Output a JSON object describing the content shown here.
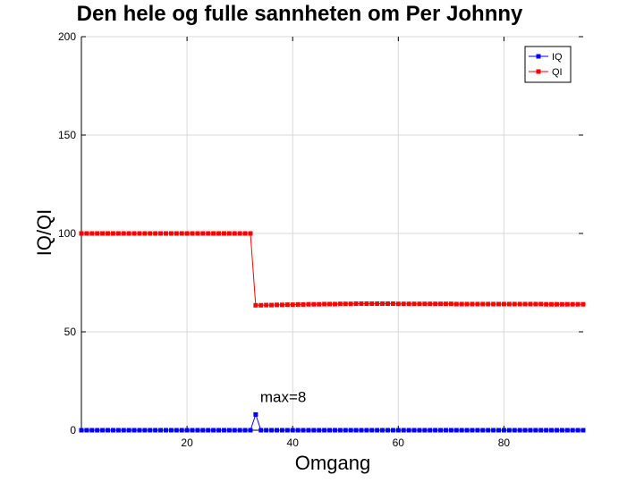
{
  "chart_data": {
    "type": "line",
    "title": "Den hele og fulle sannheten om Per Johnny",
    "xlabel": "Omgang",
    "ylabel": "IQ/QI",
    "xlim": [
      0,
      95
    ],
    "ylim": [
      0,
      200
    ],
    "xticks": [
      20,
      40,
      60,
      80
    ],
    "yticks": [
      0,
      50,
      100,
      150,
      200
    ],
    "grid": true,
    "legend_position": "top-right",
    "annotation": {
      "text": "max=8",
      "x": 33,
      "y": 8
    },
    "series": [
      {
        "name": "IQ",
        "color": "#0000ff",
        "marker": "square",
        "x": [
          0,
          1,
          2,
          3,
          4,
          5,
          6,
          7,
          8,
          9,
          10,
          11,
          12,
          13,
          14,
          15,
          16,
          17,
          18,
          19,
          20,
          21,
          22,
          23,
          24,
          25,
          26,
          27,
          28,
          29,
          30,
          31,
          32,
          33,
          34,
          35,
          36,
          37,
          38,
          39,
          40,
          41,
          42,
          43,
          44,
          45,
          46,
          47,
          48,
          49,
          50,
          51,
          52,
          53,
          54,
          55,
          56,
          57,
          58,
          59,
          60,
          61,
          62,
          63,
          64,
          65,
          66,
          67,
          68,
          69,
          70,
          71,
          72,
          73,
          74,
          75,
          76,
          77,
          78,
          79,
          80,
          81,
          82,
          83,
          84,
          85,
          86,
          87,
          88,
          89,
          90,
          91,
          92,
          93,
          94,
          95
        ],
        "y": [
          0,
          0,
          0,
          0,
          0,
          0,
          0,
          0,
          0,
          0,
          0,
          0,
          0,
          0,
          0,
          0,
          0,
          0,
          0,
          0,
          0,
          0,
          0,
          0,
          0,
          0,
          0,
          0,
          0,
          0,
          0,
          0,
          0,
          8,
          0,
          0,
          0,
          0,
          0,
          0,
          0,
          0,
          0,
          0,
          0,
          0,
          0,
          0,
          0,
          0,
          0,
          0,
          0,
          0,
          0,
          0,
          0,
          0,
          0,
          0,
          0,
          0,
          0,
          0,
          0,
          0,
          0,
          0,
          0,
          0,
          0,
          0,
          0,
          0,
          0,
          0,
          0,
          0,
          0,
          0,
          0,
          0,
          0,
          0,
          0,
          0,
          0,
          0,
          0,
          0,
          0,
          0,
          0,
          0,
          0,
          0
        ]
      },
      {
        "name": "QI",
        "color": "#ff0000",
        "marker": "square",
        "x": [
          0,
          1,
          2,
          3,
          4,
          5,
          6,
          7,
          8,
          9,
          10,
          11,
          12,
          13,
          14,
          15,
          16,
          17,
          18,
          19,
          20,
          21,
          22,
          23,
          24,
          25,
          26,
          27,
          28,
          29,
          30,
          31,
          32,
          33,
          34,
          35,
          36,
          37,
          38,
          39,
          40,
          41,
          42,
          43,
          44,
          45,
          46,
          47,
          48,
          49,
          50,
          51,
          52,
          53,
          54,
          55,
          56,
          57,
          58,
          59,
          60,
          61,
          62,
          63,
          64,
          65,
          66,
          67,
          68,
          69,
          70,
          71,
          72,
          73,
          74,
          75,
          76,
          77,
          78,
          79,
          80,
          81,
          82,
          83,
          84,
          85,
          86,
          87,
          88,
          89,
          90,
          91,
          92,
          93,
          94,
          95
        ],
        "y": [
          100,
          100,
          100,
          100,
          100,
          100,
          100,
          100,
          100,
          100,
          100,
          100,
          100,
          100,
          100,
          100,
          100,
          100,
          100,
          100,
          100,
          100,
          100,
          100,
          100,
          100,
          100,
          100,
          100,
          100,
          100,
          100,
          100,
          63.5,
          63.5,
          63.6,
          63.6,
          63.7,
          63.7,
          63.8,
          63.8,
          63.9,
          63.9,
          64,
          64,
          64,
          64.1,
          64.1,
          64.1,
          64.2,
          64.2,
          64.2,
          64.3,
          64.3,
          64.3,
          64.3,
          64.3,
          64.3,
          64.3,
          64.3,
          64.2,
          64.2,
          64.2,
          64.2,
          64.2,
          64.2,
          64.2,
          64.2,
          64.2,
          64.2,
          64.2,
          64.1,
          64.1,
          64.1,
          64.1,
          64.1,
          64.1,
          64.1,
          64.1,
          64.1,
          64.1,
          64.1,
          64.1,
          64.1,
          64.1,
          64.1,
          64.1,
          64.1,
          64,
          64,
          64,
          64,
          64,
          64,
          64,
          64
        ]
      }
    ]
  }
}
